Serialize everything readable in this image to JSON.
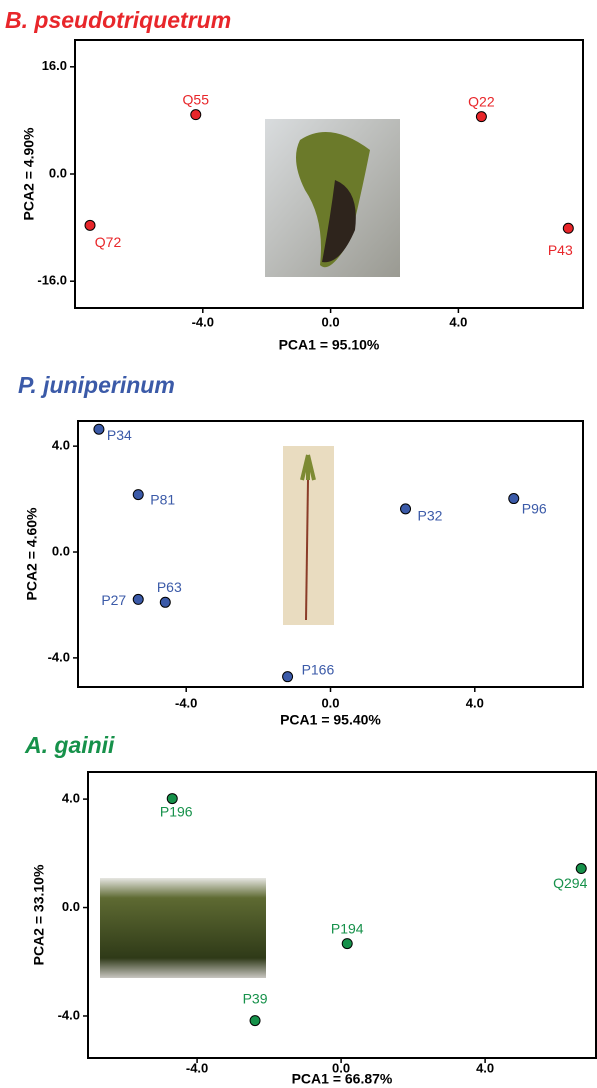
{
  "chart_data": [
    {
      "type": "scatter",
      "title": "B. pseudotriquetrum",
      "x_label": "PCA1 = 95.10%",
      "y_label": "PCA2 = 4.90%",
      "color": "#e8262a",
      "labels": [
        "Q55",
        "Q22",
        "Q72",
        "P43"
      ],
      "x": [
        -4.22,
        4.72,
        -7.53,
        7.44
      ],
      "y": [
        8.86,
        8.56,
        -7.66,
        -8.1
      ],
      "xlim": [
        -8,
        7.9
      ],
      "ylim": [
        -20,
        20
      ],
      "xticks": [
        {
          "value": -4,
          "label": "-4.0"
        },
        {
          "value": 0,
          "label": "0.0"
        },
        {
          "value": 4,
          "label": "4.0"
        }
      ],
      "yticks": [
        {
          "value": 16,
          "label": "16.0"
        },
        {
          "value": 0,
          "label": "0.0"
        },
        {
          "value": -16,
          "label": "-16.0"
        }
      ]
    },
    {
      "type": "scatter",
      "title": "P. juniperinum",
      "x_label": "PCA1 = 95.40%",
      "y_label": "PCA2 = 4.60%",
      "color": "#3b5aa8",
      "labels": [
        "P34",
        "P81",
        "P32",
        "P96",
        "P27",
        "P63",
        "P166"
      ],
      "x": [
        -6.42,
        -5.33,
        2.08,
        5.08,
        -5.33,
        -4.58,
        -1.19
      ],
      "y": [
        4.64,
        2.17,
        1.63,
        2.02,
        -1.79,
        -1.9,
        -4.71
      ],
      "xlim": [
        -7,
        7
      ],
      "ylim": [
        -5.1,
        4.95
      ],
      "xticks": [
        {
          "value": -4,
          "label": "-4.0"
        },
        {
          "value": 0,
          "label": "0.0"
        },
        {
          "value": 4,
          "label": "4.0"
        }
      ],
      "yticks": [
        {
          "value": 4,
          "label": "4.0"
        },
        {
          "value": 0,
          "label": "0.0"
        },
        {
          "value": -4,
          "label": "-4.0"
        }
      ]
    },
    {
      "type": "scatter",
      "title": "A. gainii",
      "x_label": "PCA1 = 66.87%",
      "y_label": "PCA2 = 33.10%",
      "color": "#16914a",
      "labels": [
        "P196",
        "Q294",
        "P194",
        "P39"
      ],
      "x": [
        -4.69,
        6.67,
        0.17,
        -2.39
      ],
      "y": [
        4.02,
        1.44,
        -1.33,
        -4.17
      ],
      "xlim": [
        -7.03,
        7.08
      ],
      "ylim": [
        -5.55,
        5.0
      ],
      "xticks": [
        {
          "value": -4,
          "label": "-4.0"
        },
        {
          "value": 0,
          "label": "0.0"
        },
        {
          "value": 4,
          "label": "4.0"
        }
      ],
      "yticks": [
        {
          "value": 4,
          "label": "4.0"
        },
        {
          "value": 0,
          "label": "0.0"
        },
        {
          "value": -4,
          "label": "-4.0"
        }
      ]
    }
  ]
}
